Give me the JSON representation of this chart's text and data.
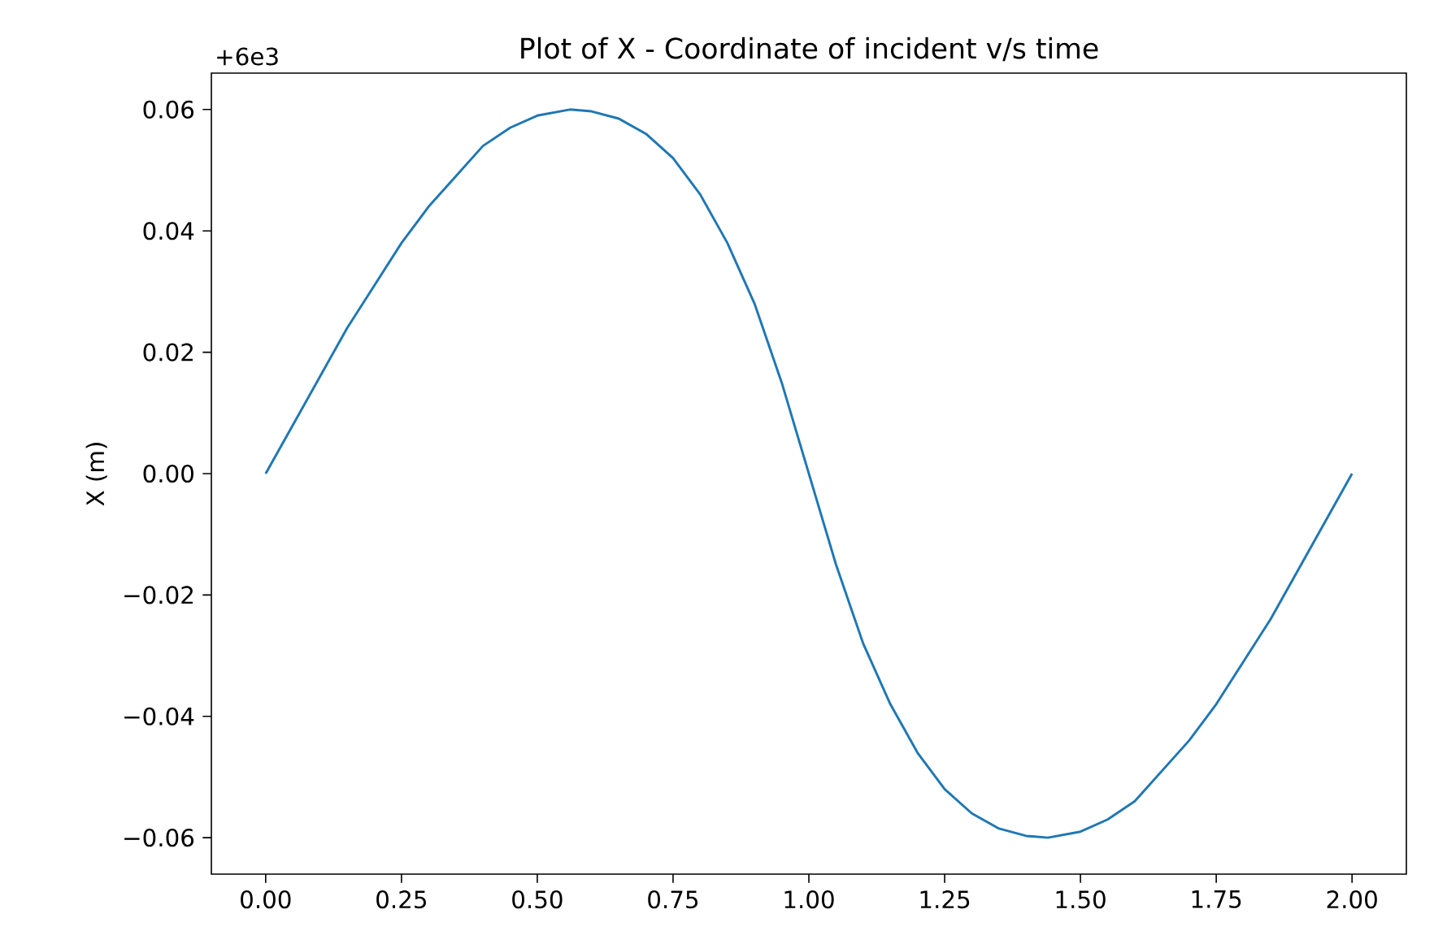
{
  "chart_data": {
    "type": "line",
    "title": "Plot of X - Coordinate of incident v/s time",
    "ylabel": "X (m)",
    "annotations": [
      "+6e3"
    ],
    "xlim": [
      -0.1,
      2.1
    ],
    "ylim": [
      -0.066,
      0.066
    ],
    "xticks": [
      {
        "value": 0,
        "label": "0.00"
      },
      {
        "value": 0.25,
        "label": "0.25"
      },
      {
        "value": 0.5,
        "label": "0.50"
      },
      {
        "value": 0.75,
        "label": "0.75"
      },
      {
        "value": 1,
        "label": "1.00"
      },
      {
        "value": 1.25,
        "label": "1.25"
      },
      {
        "value": 1.5,
        "label": "1.50"
      },
      {
        "value": 1.75,
        "label": "1.75"
      },
      {
        "value": 2,
        "label": "2.00"
      }
    ],
    "yticks": [
      {
        "value": -0.06,
        "label": "−0.06"
      },
      {
        "value": -0.04,
        "label": "−0.04"
      },
      {
        "value": -0.02,
        "label": "−0.02"
      },
      {
        "value": 0,
        "label": "0.00"
      },
      {
        "value": 0.02,
        "label": "0.02"
      },
      {
        "value": 0.04,
        "label": "0.04"
      },
      {
        "value": 0.06,
        "label": "0.06"
      }
    ],
    "grid": false,
    "marker": "none",
    "line_style": "solid",
    "series": [
      {
        "color": "#1f77b4",
        "x": [
          0,
          0.05,
          0.1,
          0.15,
          0.2,
          0.25,
          0.3,
          0.35,
          0.4,
          0.45,
          0.5,
          0.56,
          0.6,
          0.65,
          0.7,
          0.75,
          0.8,
          0.85,
          0.9,
          0.95,
          1.0,
          1.05,
          1.1,
          1.15,
          1.2,
          1.25,
          1.3,
          1.35,
          1.4,
          1.44,
          1.5,
          1.55,
          1.6,
          1.65,
          1.7,
          1.75,
          1.8,
          1.85,
          1.9,
          1.95,
          2.0
        ],
        "values": [
          0,
          0.008,
          0.016,
          0.024,
          0.031,
          0.038,
          0.044,
          0.049,
          0.054,
          0.057,
          0.059,
          0.06,
          0.0597,
          0.0585,
          0.056,
          0.052,
          0.046,
          0.038,
          0.028,
          0.015,
          0,
          -0.015,
          -0.028,
          -0.038,
          -0.046,
          -0.052,
          -0.056,
          -0.0585,
          -0.0597,
          -0.06,
          -0.059,
          -0.057,
          -0.054,
          -0.049,
          -0.044,
          -0.038,
          -0.031,
          -0.024,
          -0.016,
          -0.008,
          0
        ]
      }
    ]
  }
}
